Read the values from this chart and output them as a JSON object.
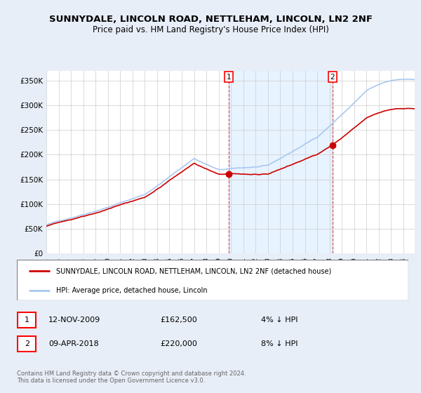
{
  "title": "SUNNYDALE, LINCOLN ROAD, NETTLEHAM, LINCOLN, LN2 2NF",
  "subtitle": "Price paid vs. HM Land Registry's House Price Index (HPI)",
  "background_color": "#e8eef8",
  "plot_bg_color": "#ffffff",
  "ylim": [
    0,
    370000
  ],
  "yticks": [
    0,
    50000,
    100000,
    150000,
    200000,
    250000,
    300000,
    350000
  ],
  "ytick_labels": [
    "£0",
    "£50K",
    "£100K",
    "£150K",
    "£200K",
    "£250K",
    "£300K",
    "£350K"
  ],
  "hpi_color": "#a8c8f0",
  "price_color": "#cc0000",
  "shade_color": "#ddeeff",
  "legend_line1": "SUNNYDALE, LINCOLN ROAD, NETTLEHAM, LINCOLN, LN2 2NF (detached house)",
  "legend_line2": "HPI: Average price, detached house, Lincoln",
  "footer": "Contains HM Land Registry data © Crown copyright and database right 2024.\nThis data is licensed under the Open Government Licence v3.0.",
  "sale1_date": "12-NOV-2009",
  "sale1_price": "£162,500",
  "sale1_hpi": "4% ↓ HPI",
  "sale2_date": "09-APR-2018",
  "sale2_price": "£220,000",
  "sale2_hpi": "8% ↓ HPI"
}
